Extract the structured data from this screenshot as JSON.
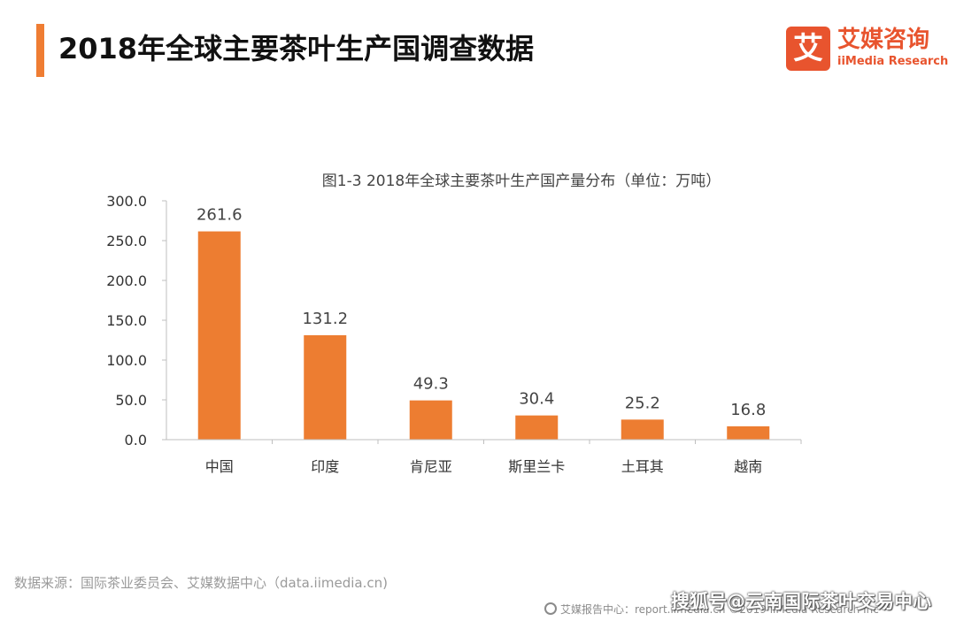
{
  "header": {
    "title": "2018年全球主要茶叶生产国调查数据",
    "logo_mark": "艾",
    "logo_cn": "艾媒咨询",
    "logo_en": "iiMedia Research"
  },
  "colors": {
    "accent": "#ef7d33",
    "bar": "#ed7d31",
    "logo": "#e8542e"
  },
  "chart_data": {
    "type": "bar",
    "title": "图1-3 2018年全球主要茶叶生产国产量分布（单位：万吨）",
    "categories": [
      "中国",
      "印度",
      "肯尼亚",
      "斯里兰卡",
      "土耳其",
      "越南"
    ],
    "values": [
      261.6,
      131.2,
      49.3,
      30.4,
      25.2,
      16.8
    ],
    "value_labels": [
      "261.6",
      "131.2",
      "49.3",
      "30.4",
      "25.2",
      "16.8"
    ],
    "yticks": [
      "0.0",
      "50.0",
      "100.0",
      "150.0",
      "200.0",
      "250.0",
      "300.0"
    ],
    "ylim": [
      0,
      300
    ],
    "xlabel": "",
    "ylabel": "",
    "grid": false,
    "legend": "none"
  },
  "footer": {
    "source": "数据来源：国际茶业委员会、艾媒数据中心（data.iimedia.cn)",
    "report_line": "艾媒报告中心：report.iimedia.cn ©2019 iiMedia Research Inc",
    "watermark": "搜狐号@云南国际茶叶交易中心"
  }
}
